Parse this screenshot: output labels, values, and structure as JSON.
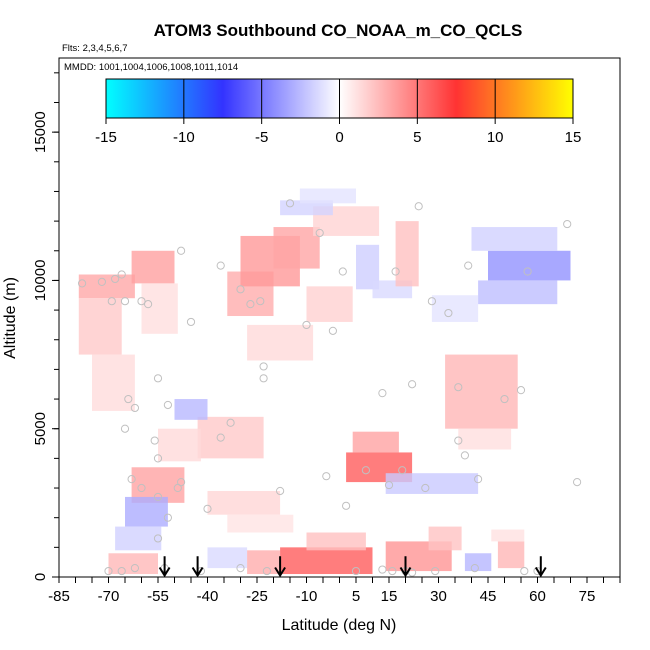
{
  "chart_data": {
    "type": "heatmap",
    "title": "ATOM3 Southbound CO_NOAA_m_CO_QCLS",
    "flights_label": "Flts: 2,3,4,5,6,7",
    "mmdd_label": "MMDD: 1001,1004,1006,1008,1011,1014",
    "xlabel": "Latitude (deg N)",
    "ylabel": "Altitude (m)",
    "xlim": [
      -85,
      85
    ],
    "ylim": [
      0,
      17500
    ],
    "x_ticks": [
      "-85",
      "-70",
      "-55",
      "-40",
      "-25",
      "-10",
      "5",
      "15",
      "30",
      "45",
      "60",
      "75"
    ],
    "x_tick_values": [
      -85,
      -70,
      -55,
      -40,
      -25,
      -10,
      5,
      15,
      30,
      45,
      60,
      75
    ],
    "y_ticks": [
      "0",
      "5000",
      "10000",
      "15000"
    ],
    "y_tick_values": [
      0,
      5000,
      10000,
      15000
    ],
    "colorbar": {
      "ticks": [
        "-15",
        "-10",
        "-5",
        "0",
        "5",
        "10",
        "15"
      ],
      "tick_values": [
        -15,
        -10,
        -5,
        0,
        5,
        10,
        15
      ],
      "range": [
        -15,
        15
      ],
      "colors": {
        "min": "#00ffff",
        "neg": "#3333ff",
        "zero": "#ffffff",
        "pos": "#ff3333",
        "max": "#ffff00"
      }
    },
    "arrow_latitudes": [
      -53,
      -43,
      -18,
      20,
      61
    ],
    "cells": [
      {
        "lat": [
          -79,
          -62
        ],
        "alt": [
          9400,
          10200
        ],
        "v": 3.2
      },
      {
        "lat": [
          -79,
          -66
        ],
        "alt": [
          7500,
          9400
        ],
        "v": 2.0
      },
      {
        "lat": [
          -75,
          -62
        ],
        "alt": [
          5600,
          7500
        ],
        "v": 1.3
      },
      {
        "lat": [
          -63,
          -50
        ],
        "alt": [
          9900,
          11000
        ],
        "v": 3.5
      },
      {
        "lat": [
          -60,
          -49
        ],
        "alt": [
          8200,
          9900
        ],
        "v": 1.2
      },
      {
        "lat": [
          -34,
          -20
        ],
        "alt": [
          8800,
          10300
        ],
        "v": 3.0
      },
      {
        "lat": [
          -30,
          -12
        ],
        "alt": [
          9800,
          11500
        ],
        "v": 3.8
      },
      {
        "lat": [
          -20,
          -6
        ],
        "alt": [
          10400,
          11800
        ],
        "v": 3.3
      },
      {
        "lat": [
          -8,
          12
        ],
        "alt": [
          11500,
          12500
        ],
        "v": 1.6
      },
      {
        "lat": [
          -10,
          4
        ],
        "alt": [
          8600,
          9800
        ],
        "v": 1.7
      },
      {
        "lat": [
          -28,
          -8
        ],
        "alt": [
          7300,
          8500
        ],
        "v": 1.4
      },
      {
        "lat": [
          -18,
          -2
        ],
        "alt": [
          12200,
          12700
        ],
        "v": -1.6
      },
      {
        "lat": [
          -12,
          5
        ],
        "alt": [
          12600,
          13100
        ],
        "v": -1.0
      },
      {
        "lat": [
          5,
          12
        ],
        "alt": [
          9700,
          11200
        ],
        "v": -1.8
      },
      {
        "lat": [
          10,
          22
        ],
        "alt": [
          9400,
          10000
        ],
        "v": -1.4
      },
      {
        "lat": [
          17,
          24
        ],
        "alt": [
          9800,
          12000
        ],
        "v": 2.3
      },
      {
        "lat": [
          45,
          70
        ],
        "alt": [
          10000,
          11000
        ],
        "v": -4.0
      },
      {
        "lat": [
          42,
          66
        ],
        "alt": [
          9200,
          10000
        ],
        "v": -2.4
      },
      {
        "lat": [
          40,
          66
        ],
        "alt": [
          11000,
          11800
        ],
        "v": -1.7
      },
      {
        "lat": [
          28,
          42
        ],
        "alt": [
          8600,
          9500
        ],
        "v": -1.0
      },
      {
        "lat": [
          32,
          54
        ],
        "alt": [
          5000,
          7500
        ],
        "v": 2.7
      },
      {
        "lat": [
          36,
          52
        ],
        "alt": [
          4300,
          5000
        ],
        "v": 1.2
      },
      {
        "lat": [
          -43,
          -23
        ],
        "alt": [
          4000,
          5400
        ],
        "v": 2.0
      },
      {
        "lat": [
          -55,
          -42
        ],
        "alt": [
          3900,
          5000
        ],
        "v": 1.4
      },
      {
        "lat": [
          -50,
          -40
        ],
        "alt": [
          5300,
          6000
        ],
        "v": -2.6
      },
      {
        "lat": [
          -63,
          -47
        ],
        "alt": [
          2500,
          3700
        ],
        "v": 3.4
      },
      {
        "lat": [
          -65,
          -52
        ],
        "alt": [
          1700,
          2700
        ],
        "v": -3.0
      },
      {
        "lat": [
          -68,
          -54
        ],
        "alt": [
          900,
          1700
        ],
        "v": -1.7
      },
      {
        "lat": [
          2,
          22
        ],
        "alt": [
          3200,
          4200
        ],
        "v": 6.0
      },
      {
        "lat": [
          4,
          18
        ],
        "alt": [
          4200,
          4900
        ],
        "v": 3.4
      },
      {
        "lat": [
          14,
          42
        ],
        "alt": [
          2800,
          3500
        ],
        "v": -2.0
      },
      {
        "lat": [
          -40,
          -18
        ],
        "alt": [
          2100,
          2900
        ],
        "v": 1.5
      },
      {
        "lat": [
          -34,
          -14
        ],
        "alt": [
          1500,
          2100
        ],
        "v": 1.0
      },
      {
        "lat": [
          -40,
          -28
        ],
        "alt": [
          300,
          1000
        ],
        "v": -1.4
      },
      {
        "lat": [
          -28,
          -18
        ],
        "alt": [
          100,
          900
        ],
        "v": 3.0
      },
      {
        "lat": [
          -18,
          10
        ],
        "alt": [
          100,
          1000
        ],
        "v": 6.0
      },
      {
        "lat": [
          -10,
          8
        ],
        "alt": [
          900,
          1500
        ],
        "v": 2.3
      },
      {
        "lat": [
          14,
          34
        ],
        "alt": [
          200,
          1200
        ],
        "v": 3.9
      },
      {
        "lat": [
          27,
          37
        ],
        "alt": [
          900,
          1700
        ],
        "v": 2.2
      },
      {
        "lat": [
          -70,
          -55
        ],
        "alt": [
          100,
          800
        ],
        "v": 2.6
      },
      {
        "lat": [
          48,
          56
        ],
        "alt": [
          300,
          1200
        ],
        "v": 2.7
      },
      {
        "lat": [
          38,
          46
        ],
        "alt": [
          200,
          800
        ],
        "v": -2.7
      },
      {
        "lat": [
          46,
          56
        ],
        "alt": [
          1200,
          1600
        ],
        "v": 1.1
      }
    ],
    "points": [
      [
        -78,
        9900
      ],
      [
        -72,
        9950
      ],
      [
        -68,
        10050
      ],
      [
        -66,
        10200
      ],
      [
        -69,
        9300
      ],
      [
        -65,
        9300
      ],
      [
        -60,
        9300
      ],
      [
        -58,
        9200
      ],
      [
        -45,
        8600
      ],
      [
        -36,
        10500
      ],
      [
        -48,
        11000
      ],
      [
        -30,
        9700
      ],
      [
        -27,
        9200
      ],
      [
        -24,
        9300
      ],
      [
        -23,
        7100
      ],
      [
        -23,
        6700
      ],
      [
        -15,
        12600
      ],
      [
        -6,
        11600
      ],
      [
        1,
        10300
      ],
      [
        -10,
        8500
      ],
      [
        -2,
        8300
      ],
      [
        -4,
        3400
      ],
      [
        8,
        3600
      ],
      [
        2,
        2400
      ],
      [
        13,
        6200
      ],
      [
        17,
        10300
      ],
      [
        22,
        6500
      ],
      [
        24,
        12500
      ],
      [
        28,
        9300
      ],
      [
        33,
        8900
      ],
      [
        36,
        6400
      ],
      [
        39,
        10500
      ],
      [
        57,
        10300
      ],
      [
        69,
        11900
      ],
      [
        72,
        3200
      ],
      [
        50,
        6000
      ],
      [
        55,
        6300
      ],
      [
        42,
        3300
      ],
      [
        36,
        4600
      ],
      [
        38,
        4100
      ],
      [
        26,
        3000
      ],
      [
        15,
        3100
      ],
      [
        19,
        3600
      ],
      [
        -55,
        6700
      ],
      [
        -52,
        5800
      ],
      [
        -56,
        4600
      ],
      [
        -55,
        4000
      ],
      [
        -64,
        6000
      ],
      [
        -62,
        5700
      ],
      [
        -65,
        5000
      ],
      [
        -48,
        3200
      ],
      [
        -40,
        2300
      ],
      [
        -49,
        3000
      ],
      [
        -55,
        2700
      ],
      [
        -52,
        2000
      ],
      [
        -63,
        3300
      ],
      [
        -60,
        3000
      ],
      [
        -55,
        1300
      ],
      [
        -18,
        2900
      ],
      [
        -42,
        200
      ],
      [
        -53,
        300
      ],
      [
        -70,
        200
      ],
      [
        -66,
        200
      ],
      [
        -62,
        300
      ],
      [
        -30,
        300
      ],
      [
        -22,
        200
      ],
      [
        5,
        200
      ],
      [
        13,
        250
      ],
      [
        16,
        200
      ],
      [
        20,
        200
      ],
      [
        22,
        150
      ],
      [
        29,
        200
      ],
      [
        41,
        300
      ],
      [
        56,
        200
      ],
      [
        60,
        200
      ],
      [
        -33,
        5200
      ],
      [
        -36,
        4700
      ]
    ]
  }
}
